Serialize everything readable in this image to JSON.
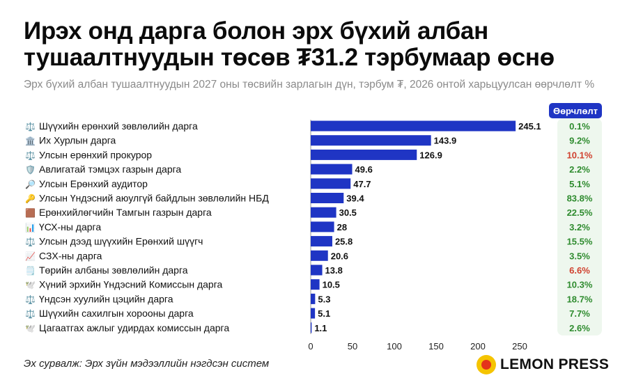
{
  "title": "Ирэх онд дарга болон эрх бүхий албан тушаалтнуудын төсөв ₮31.2 тэрбумаар өснө",
  "subtitle": "Эрх бүхий албан тушаалтнуудын 2027 оны төсвийн зарлагын дүн, тэрбум ₮, 2026 онтой харьцуулсан өөрчлөлт %",
  "change_header": "Өөрчлөлт",
  "source": "Эх сурвалж: Эрх зүйн мэдээллийн нэгдсэн систем",
  "logo_text": "LEMON PRESS",
  "colors": {
    "bar": "#1f35c4",
    "positive": "#2e8b2e",
    "negative": "#d0412f",
    "header_bg": "#1f35c4",
    "change_bg": "#eef7ee"
  },
  "chart_data": {
    "type": "bar",
    "orientation": "horizontal",
    "categories": [
      "Шүүхийн ерөнхий зөвлөлийн дарга",
      "Их Хурлын дарга",
      "Улсын ерөнхий прокурор",
      "Авлигатай тэмцэх газрын дарга",
      "Улсын Ерөнхий аудитор",
      "Улсын Үндэсний аюулгүй байдлын зөвлөлийн НБД",
      "Ерөнхийлөгчийн Тамгын газрын дарга",
      "ҮСХ-ны дарга",
      "Улсын дээд шүүхийн Ерөнхий шүүгч",
      "СЗХ-ны дарга",
      "Төрийн албаны зөвлөлийн дарга",
      "Хүний эрхийн Үндэсний Комиссын дарга",
      "Үндсэн хуулийн цэцийн дарга",
      "Шүүхийн сахилгын хорооны дарга",
      "Цагаатгах ажлыг удирдах комиссын дарга"
    ],
    "icons": [
      "⚖️",
      "🏛️",
      "⚖️",
      "🛡️",
      "🔎",
      "🔑",
      "🟫",
      "📊",
      "⚖️",
      "📈",
      "🗒️",
      "🕊️",
      "⚖️",
      "⚖️",
      "🕊️"
    ],
    "values": [
      245.1,
      143.9,
      126.9,
      49.6,
      47.7,
      39.4,
      30.5,
      28,
      25.8,
      20.6,
      13.8,
      10.5,
      5.3,
      5.1,
      1.1
    ],
    "value_labels": [
      "245.1",
      "143.9",
      "126.9",
      "49.6",
      "47.7",
      "39.4",
      "30.5",
      "28",
      "25.8",
      "20.6",
      "13.8",
      "10.5",
      "5.3",
      "5.1",
      "1.1"
    ],
    "change": [
      "0.1%",
      "9.2%",
      "10.1%",
      "2.2%",
      "5.1%",
      "83.8%",
      "22.5%",
      "3.2%",
      "15.5%",
      "3.5%",
      "6.6%",
      "10.3%",
      "18.7%",
      "7.7%",
      "2.6%"
    ],
    "change_negative": [
      false,
      false,
      true,
      false,
      false,
      false,
      false,
      false,
      false,
      false,
      true,
      false,
      false,
      false,
      false
    ],
    "xlim": [
      0,
      250
    ],
    "xticks": [
      "0",
      "50",
      "100",
      "150",
      "200",
      "250"
    ],
    "grid": false,
    "legend": false
  }
}
